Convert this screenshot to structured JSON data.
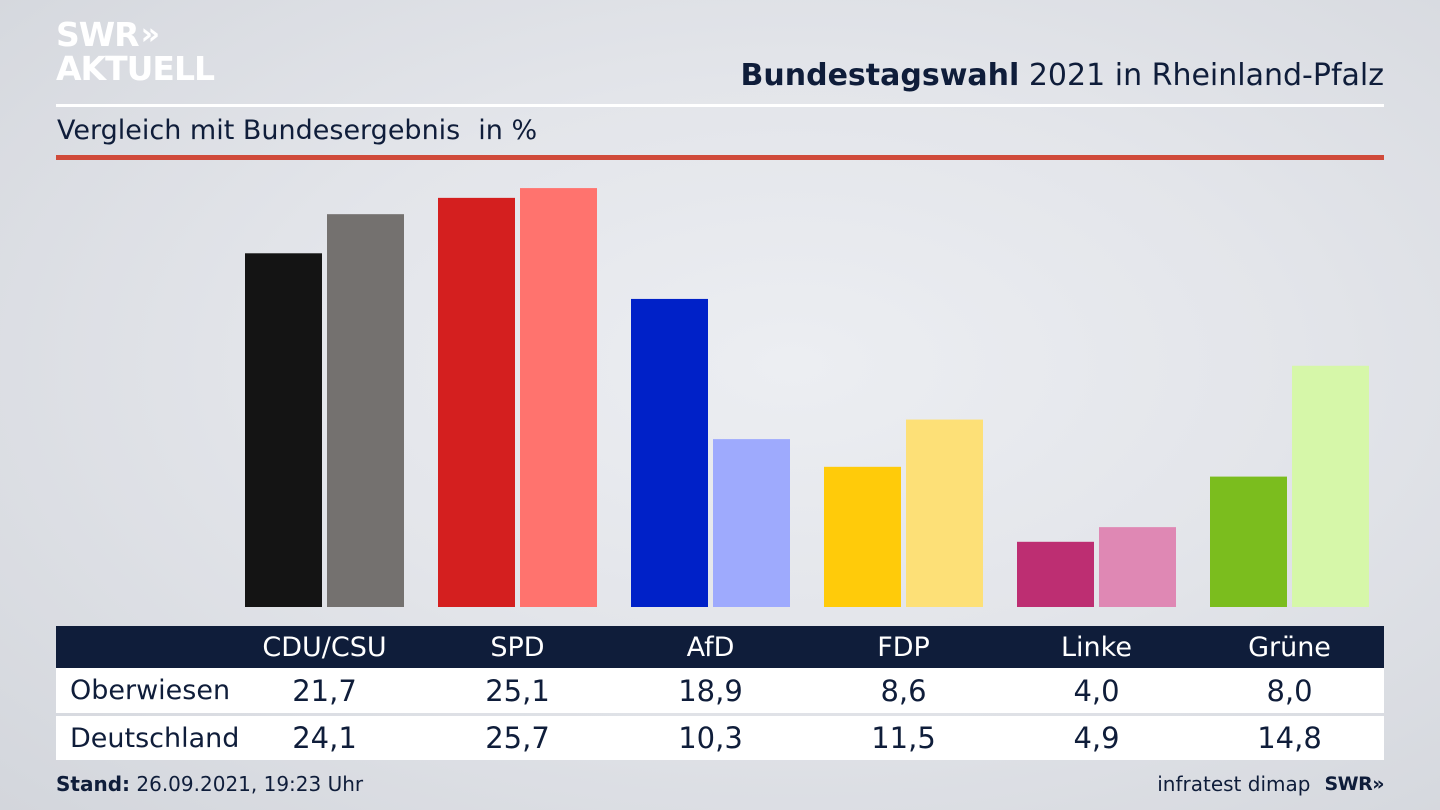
{
  "header": {
    "logo_line1": "SWR",
    "logo_chevrons": "»",
    "logo_line2": "AKTUELL",
    "title_bold": "Bundestagswahl",
    "title_rest": "2021 in Rheinland-Pfalz",
    "subtitle": "Vergleich mit Bundesergebnis",
    "unit": "in %"
  },
  "colors": {
    "text": "#0f1d3a",
    "accent_line": "#d04a3a",
    "table_header": "#0f1d3a"
  },
  "chart_data": {
    "type": "bar",
    "title": "Bundestagswahl 2021 in Rheinland-Pfalz",
    "subtitle": "Vergleich mit Bundesergebnis",
    "ylabel": "in %",
    "ylim": [
      0,
      26.5
    ],
    "grid": false,
    "categories": [
      "CDU/CSU",
      "SPD",
      "AfD",
      "FDP",
      "Linke",
      "Grüne"
    ],
    "series": [
      {
        "name": "Oberwiesen",
        "values": [
          21.7,
          25.1,
          18.9,
          8.6,
          4.0,
          8.0
        ],
        "labels": [
          "21,7",
          "25,1",
          "18,9",
          "8,6",
          "4,0",
          "8,0"
        ],
        "colors": [
          "#141414",
          "#d41f1f",
          "#0021c8",
          "#ffcb0a",
          "#bd2e72",
          "#7bbd1e"
        ]
      },
      {
        "name": "Deutschland",
        "values": [
          24.1,
          25.7,
          10.3,
          11.5,
          4.9,
          14.8
        ],
        "labels": [
          "24,1",
          "25,7",
          "10,3",
          "11,5",
          "4,9",
          "14,8"
        ],
        "colors": [
          "#74716f",
          "#ff736e",
          "#9eaafd",
          "#fde077",
          "#df88b4",
          "#d6f7a9"
        ]
      }
    ]
  },
  "footer": {
    "stand_label": "Stand:",
    "stand_value": "26.09.2021, 19:23 Uhr",
    "source": "infratest dimap",
    "brand": "SWR",
    "brand_chevrons": "»"
  }
}
